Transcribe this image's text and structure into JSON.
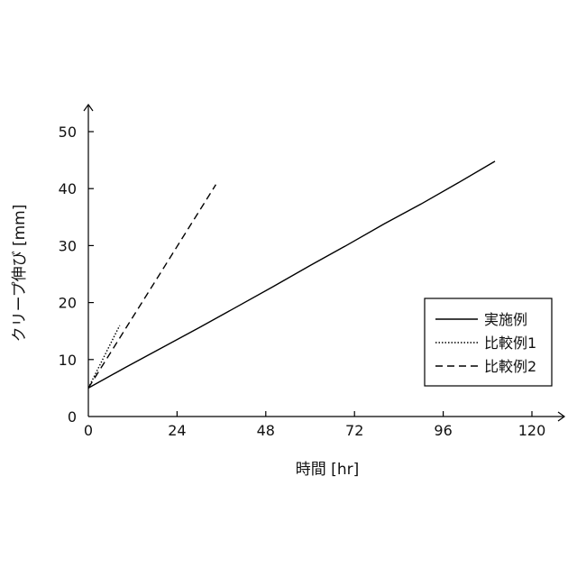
{
  "chart_data": {
    "type": "line",
    "xlabel": "時間 [hr]",
    "ylabel": "クリープ伸び [mm]",
    "xlim": [
      0,
      130
    ],
    "ylim": [
      0,
      55
    ],
    "xticks": [
      0,
      24,
      48,
      72,
      96,
      120
    ],
    "yticks": [
      0,
      10,
      20,
      30,
      40,
      50
    ],
    "grid": false,
    "legend_position": "right",
    "series": [
      {
        "name": "実施例",
        "line_style": "solid",
        "x": [
          0,
          10,
          20,
          30,
          40,
          50,
          60,
          70,
          80,
          90,
          100,
          110
        ],
        "y": [
          5,
          8.6,
          12.1,
          15.6,
          19.2,
          22.8,
          26.5,
          30.1,
          33.8,
          37.3,
          41.0,
          44.8
        ]
      },
      {
        "name": "比較例1",
        "line_style": "dotted",
        "x": [
          0,
          8.5
        ],
        "y": [
          5,
          16
        ]
      },
      {
        "name": "比較例2",
        "line_style": "dashed",
        "x": [
          0,
          34.5
        ],
        "y": [
          5,
          40.7
        ]
      }
    ]
  }
}
